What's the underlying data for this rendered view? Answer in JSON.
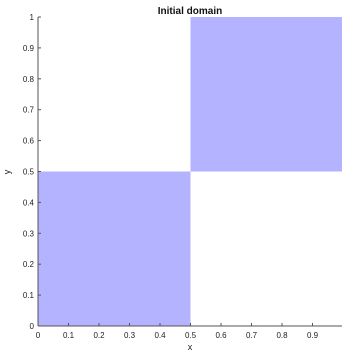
{
  "chart_data": {
    "type": "area",
    "title": "Initial domain",
    "xlabel": "x",
    "ylabel": "y",
    "xlim": [
      0,
      1
    ],
    "ylim": [
      0,
      1
    ],
    "xticks": [
      0,
      0.1,
      0.2,
      0.3,
      0.4,
      0.5,
      0.6,
      0.7,
      0.8,
      0.9
    ],
    "xtick_labels": [
      "0",
      "0.1",
      "0.2",
      "0.3",
      "0.4",
      "0.5",
      "0.6",
      "0.7",
      "0.8",
      "0.9"
    ],
    "yticks": [
      0,
      0.1,
      0.2,
      0.3,
      0.4,
      0.5,
      0.6,
      0.7,
      0.8,
      0.9,
      1
    ],
    "ytick_labels": [
      "0",
      "0.1",
      "0.2",
      "0.3",
      "0.4",
      "0.5",
      "0.6",
      "0.7",
      "0.8",
      "0.9",
      "1"
    ],
    "grid": false,
    "fill_color": "#b3b3ff",
    "regions": [
      {
        "x": [
          0,
          0.5
        ],
        "y": [
          0,
          0.5
        ]
      },
      {
        "x": [
          0.5,
          1
        ],
        "y": [
          0.5,
          1
        ]
      }
    ]
  }
}
